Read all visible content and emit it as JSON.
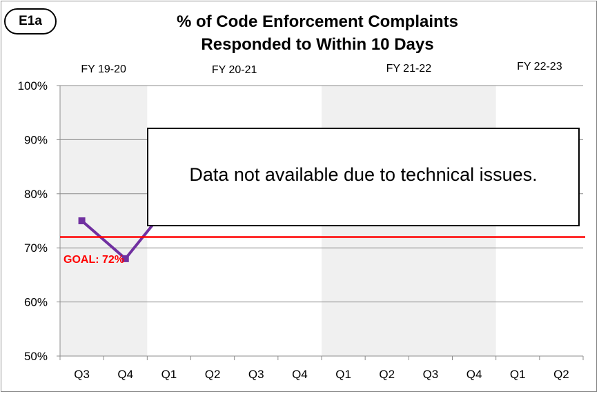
{
  "badge": "E1a",
  "chart_data": {
    "type": "line",
    "title_line1": "% of Code Enforcement Complaints",
    "title_line2": "Responded to Within 10 Days",
    "categories": [
      "Q3",
      "Q4",
      "Q1",
      "Q2",
      "Q3",
      "Q4",
      "Q1",
      "Q2",
      "Q3",
      "Q4",
      "Q1",
      "Q2"
    ],
    "fiscal_years": [
      {
        "label": "FY 19-20",
        "start": 0,
        "count": 2,
        "shaded": true
      },
      {
        "label": "FY 20-21",
        "start": 2,
        "count": 4,
        "shaded": false
      },
      {
        "label": "FY 21-22",
        "start": 6,
        "count": 4,
        "shaded": true
      },
      {
        "label": "FY 22-23",
        "start": 10,
        "count": 2,
        "shaded": false
      }
    ],
    "yticks": [
      "50%",
      "60%",
      "70%",
      "80%",
      "90%",
      "100%"
    ],
    "ylim": [
      50,
      100
    ],
    "series": [
      {
        "values": [
          75,
          68,
          78,
          null,
          null,
          null,
          null,
          null,
          null,
          null,
          null,
          null
        ],
        "color": "#7030a0"
      }
    ],
    "goal": {
      "value": 72,
      "label": "GOAL: 72%",
      "color": "#ff0000"
    },
    "notice": "Data not available due to technical issues.",
    "shade_color": "#f0f0f0",
    "grid": true
  }
}
